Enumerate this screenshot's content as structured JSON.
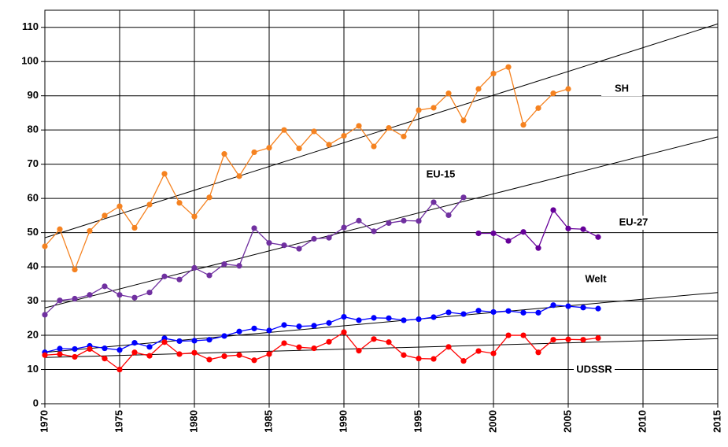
{
  "chart_data": {
    "type": "line",
    "xlim": [
      1970,
      2015
    ],
    "xticks": [
      1970,
      1975,
      1980,
      1985,
      1990,
      1995,
      2000,
      2005,
      2010,
      2015
    ],
    "ylim": [
      0,
      115
    ],
    "yticks": [
      0,
      10,
      20,
      30,
      40,
      50,
      60,
      70,
      80,
      90,
      100,
      110
    ],
    "grid": true,
    "series": [
      {
        "name": "SH",
        "color": "#f58220",
        "x": [
          1970,
          1971,
          1972,
          1973,
          1974,
          1975,
          1976,
          1977,
          1978,
          1979,
          1980,
          1981,
          1982,
          1983,
          1984,
          1985,
          1986,
          1987,
          1988,
          1989,
          1990,
          1991,
          1992,
          1993,
          1994,
          1995,
          1996,
          1997,
          1998,
          1999,
          2000,
          2001,
          2002,
          2003,
          2004,
          2005
        ],
        "values": [
          46,
          51,
          39.2,
          50.5,
          55,
          57.7,
          51.4,
          58.2,
          67.2,
          58.7,
          54.7,
          60.3,
          73,
          66.5,
          73.5,
          74.8,
          80,
          74.6,
          79.6,
          75.7,
          78.3,
          81.2,
          75.2,
          80.6,
          78.1,
          85.8,
          86.5,
          90.7,
          82.8,
          92,
          96.5,
          98.4,
          81.5,
          86.4,
          90.7,
          92
        ]
      },
      {
        "name": "EU-15",
        "color": "#7030a0",
        "x": [
          1970,
          1971,
          1972,
          1973,
          1974,
          1975,
          1976,
          1977,
          1978,
          1979,
          1980,
          1981,
          1982,
          1983,
          1984,
          1985,
          1986,
          1987,
          1988,
          1989,
          1990,
          1991,
          1992,
          1993,
          1994,
          1995,
          1996,
          1997,
          1998
        ],
        "values": [
          26,
          30.2,
          30.7,
          31.8,
          34.3,
          31.8,
          31,
          32.5,
          37.2,
          36.3,
          39.7,
          37.5,
          40.8,
          40.3,
          51.3,
          47,
          46.3,
          45.3,
          48.2,
          48.5,
          51.5,
          53.5,
          50.4,
          52.8,
          53.5,
          53.4,
          58.9,
          55.1,
          60.3
        ]
      },
      {
        "name": "EU-27",
        "color": "#660099",
        "x": [
          1999,
          2000,
          2001,
          2002,
          2003,
          2004,
          2005,
          2006,
          2007
        ],
        "values": [
          49.8,
          49.8,
          47.6,
          50.2,
          45.5,
          56.6,
          51.2,
          51,
          48.7
        ]
      },
      {
        "name": "Welt",
        "color": "#0000ff",
        "x": [
          1970,
          1971,
          1972,
          1973,
          1974,
          1975,
          1976,
          1977,
          1978,
          1979,
          1980,
          1981,
          1982,
          1983,
          1984,
          1985,
          1986,
          1987,
          1988,
          1989,
          1990,
          1991,
          1992,
          1993,
          1994,
          1995,
          1996,
          1997,
          1998,
          1999,
          2000,
          2001,
          2002,
          2003,
          2004,
          2005,
          2006,
          2007
        ],
        "values": [
          15,
          16.1,
          16,
          16.9,
          16.2,
          15.7,
          17.8,
          16.6,
          19.1,
          18.3,
          18.4,
          18.7,
          19.8,
          21.1,
          22,
          21.4,
          23,
          22.6,
          22.8,
          23.6,
          25.4,
          24.4,
          25.1,
          25,
          24.4,
          24.7,
          25.3,
          26.7,
          26.2,
          27.2,
          26.8,
          27.1,
          26.6,
          26.6,
          28.8,
          28.5,
          28.1,
          27.8
        ]
      },
      {
        "name": "UDSSR",
        "color": "#ff0000",
        "x": [
          1970,
          1971,
          1972,
          1973,
          1974,
          1975,
          1976,
          1977,
          1978,
          1979,
          1980,
          1981,
          1982,
          1983,
          1984,
          1985,
          1986,
          1987,
          1988,
          1989,
          1990,
          1991,
          1992,
          1993,
          1994,
          1995,
          1996,
          1997,
          1998,
          1999,
          2000,
          2001,
          2002,
          2003,
          2004,
          2005,
          2006,
          2007
        ],
        "values": [
          14.2,
          14.5,
          13.7,
          16,
          13.2,
          10,
          15,
          14,
          18,
          14.5,
          14.9,
          12.9,
          13.9,
          14.2,
          12.7,
          14.5,
          17.7,
          16.5,
          16.2,
          18.1,
          20.9,
          15.5,
          18.9,
          18,
          14.2,
          13.2,
          13.1,
          16.6,
          12.5,
          15.4,
          14.7,
          20,
          20,
          15,
          18.7,
          18.8,
          18.7,
          19.2
        ]
      }
    ],
    "trendlines": [
      {
        "x": [
          1970,
          2015
        ],
        "values": [
          48.5,
          111
        ]
      },
      {
        "x": [
          1970,
          2015
        ],
        "values": [
          28,
          78
        ]
      },
      {
        "x": [
          1970,
          2015
        ],
        "values": [
          15,
          32.5
        ]
      },
      {
        "x": [
          1970,
          2015
        ],
        "values": [
          13.5,
          19
        ]
      }
    ]
  }
}
